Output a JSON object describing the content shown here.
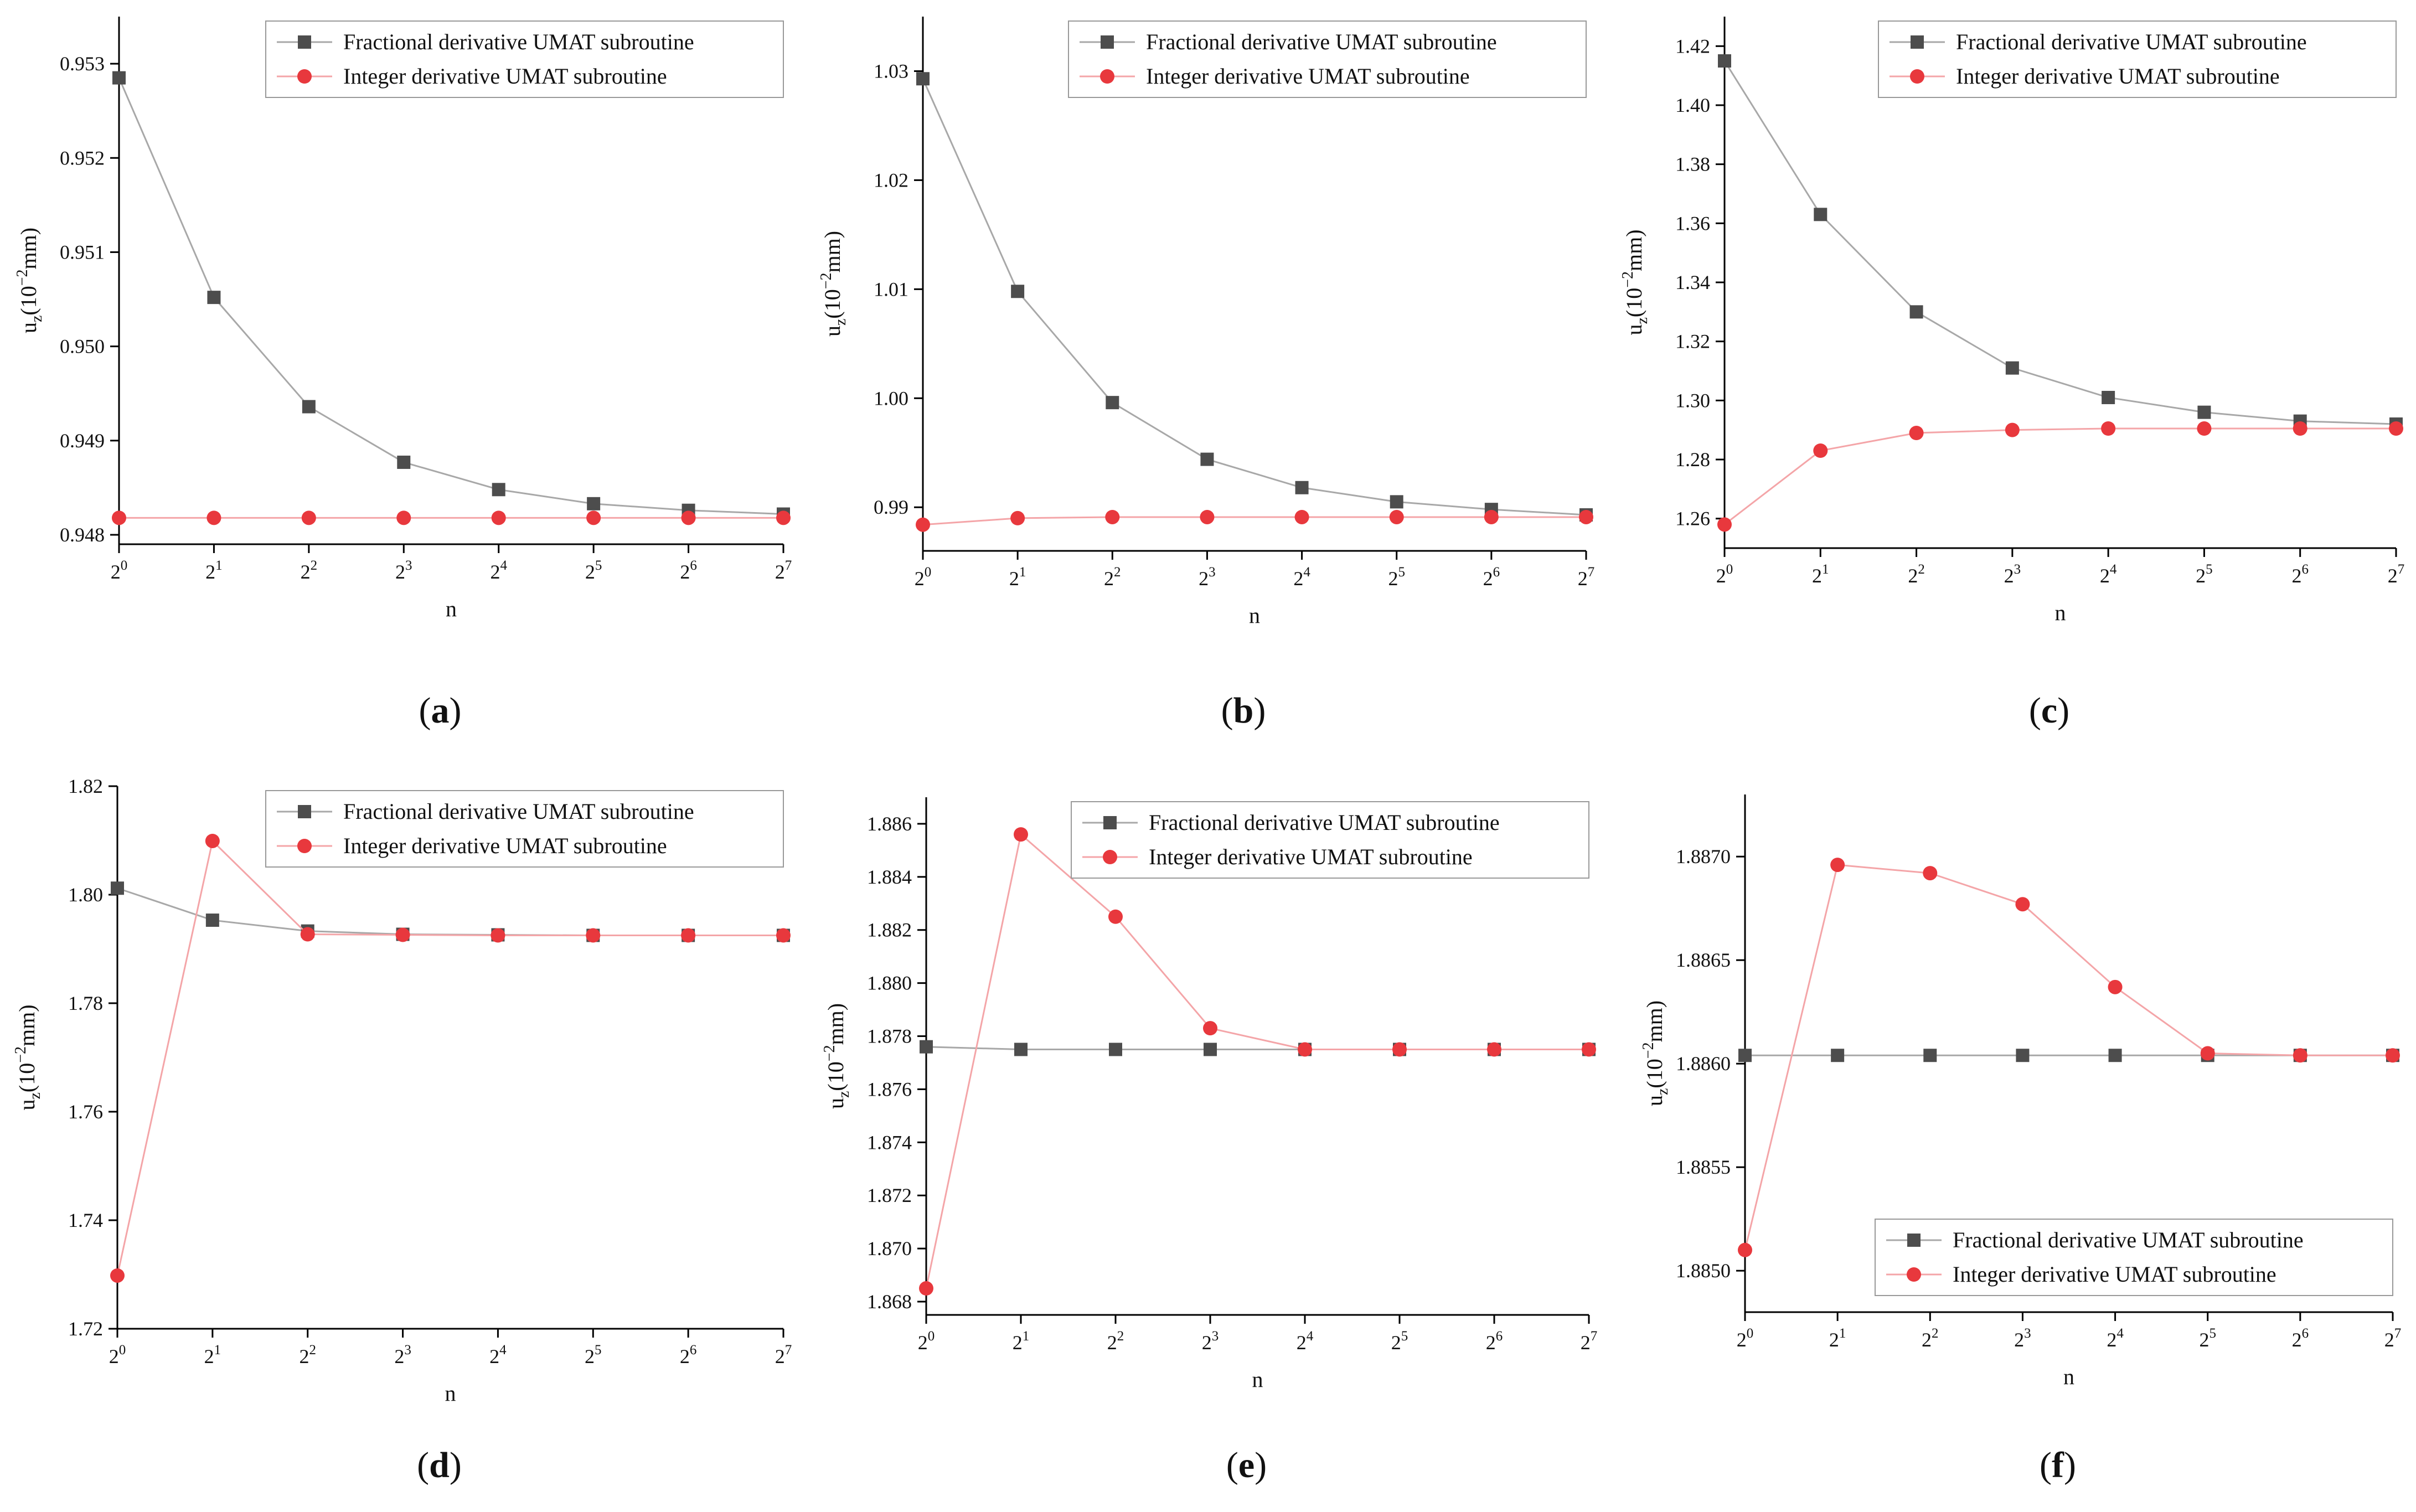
{
  "figure": {
    "xlabel": "n",
    "ylabel_main": "u",
    "ylabel_sub": "z",
    "ylabel_unit_pre": "(10",
    "ylabel_unit_exp": "−2",
    "ylabel_unit_post": "mm)",
    "x_tick_base": "2",
    "x_tick_exponents": [
      "0",
      "1",
      "2",
      "3",
      "4",
      "5",
      "6",
      "7"
    ],
    "fractional_color": "#4d4d4d",
    "integer_color": "#e8383d"
  },
  "chart_data": [
    {
      "type": "line",
      "panel": "(a)",
      "title": "",
      "xlabel": "n",
      "ylabel": "uz(10−2mm)",
      "categories": [
        "2^0",
        "2^1",
        "2^2",
        "2^3",
        "2^4",
        "2^5",
        "2^6",
        "2^7"
      ],
      "ylim": [
        0.9479,
        0.9535
      ],
      "yticks": [
        "0.948",
        "0.949",
        "0.950",
        "0.951",
        "0.952",
        "0.953"
      ],
      "legend_position": "top-right",
      "series": [
        {
          "name": "Fractional derivative UMAT subroutine",
          "values": [
            0.95285,
            0.95052,
            0.94936,
            0.94877,
            0.94848,
            0.94833,
            0.94826,
            0.94822
          ]
        },
        {
          "name": "Integer derivative UMAT subroutine",
          "values": [
            0.94818,
            0.94818,
            0.94818,
            0.94818,
            0.94818,
            0.94818,
            0.94818,
            0.94818
          ]
        }
      ]
    },
    {
      "type": "line",
      "panel": "(b)",
      "title": "",
      "xlabel": "n",
      "ylabel": "uz(10−2mm)",
      "categories": [
        "2^0",
        "2^1",
        "2^2",
        "2^3",
        "2^4",
        "2^5",
        "2^6",
        "2^7"
      ],
      "ylim": [
        0.986,
        1.035
      ],
      "yticks": [
        "0.99",
        "1.00",
        "1.01",
        "1.02",
        "1.03"
      ],
      "legend_position": "top-right",
      "series": [
        {
          "name": "Fractional derivative UMAT subroutine",
          "values": [
            1.0293,
            1.0098,
            0.9996,
            0.9944,
            0.9918,
            0.9905,
            0.9898,
            0.9893
          ]
        },
        {
          "name": "Integer derivative UMAT subroutine",
          "values": [
            0.9884,
            0.989,
            0.9891,
            0.9891,
            0.9891,
            0.9891,
            0.9891,
            0.9891
          ]
        }
      ]
    },
    {
      "type": "line",
      "panel": "(c)",
      "title": "",
      "xlabel": "n",
      "ylabel": "uz(10−2mm)",
      "categories": [
        "2^0",
        "2^1",
        "2^2",
        "2^3",
        "2^4",
        "2^5",
        "2^6",
        "2^7"
      ],
      "ylim": [
        1.25,
        1.43
      ],
      "yticks": [
        "1.26",
        "1.28",
        "1.30",
        "1.32",
        "1.34",
        "1.36",
        "1.38",
        "1.40",
        "1.42"
      ],
      "legend_position": "top-right",
      "series": [
        {
          "name": "Fractional derivative UMAT subroutine",
          "values": [
            1.415,
            1.363,
            1.33,
            1.311,
            1.301,
            1.296,
            1.293,
            1.292
          ]
        },
        {
          "name": "Integer derivative UMAT subroutine",
          "values": [
            1.258,
            1.283,
            1.289,
            1.29,
            1.2905,
            1.2905,
            1.2905,
            1.2905
          ]
        }
      ]
    },
    {
      "type": "line",
      "panel": "(d)",
      "title": "",
      "xlabel": "n",
      "ylabel": "uz(10−2mm)",
      "categories": [
        "2^0",
        "2^1",
        "2^2",
        "2^3",
        "2^4",
        "2^5",
        "2^6",
        "2^7"
      ],
      "ylim": [
        1.72,
        1.82
      ],
      "yticks": [
        "1.72",
        "1.74",
        "1.76",
        "1.78",
        "1.80",
        "1.82"
      ],
      "legend_position": "top-right",
      "series": [
        {
          "name": "Fractional derivative UMAT subroutine",
          "values": [
            1.8012,
            1.7953,
            1.7933,
            1.7927,
            1.7926,
            1.7925,
            1.7925,
            1.7925
          ]
        },
        {
          "name": "Integer derivative UMAT subroutine",
          "values": [
            1.7298,
            1.8099,
            1.7927,
            1.7926,
            1.7925,
            1.7925,
            1.7925,
            1.7925
          ]
        }
      ]
    },
    {
      "type": "line",
      "panel": "(e)",
      "title": "",
      "xlabel": "n",
      "ylabel": "uz(10−2mm)",
      "categories": [
        "2^0",
        "2^1",
        "2^2",
        "2^3",
        "2^4",
        "2^5",
        "2^6",
        "2^7"
      ],
      "ylim": [
        1.8675,
        1.887
      ],
      "yticks": [
        "1.868",
        "1.870",
        "1.872",
        "1.874",
        "1.876",
        "1.878",
        "1.880",
        "1.882",
        "1.884",
        "1.886"
      ],
      "legend_position": "top-right",
      "series": [
        {
          "name": "Fractional derivative UMAT subroutine",
          "values": [
            1.8776,
            1.8775,
            1.8775,
            1.8775,
            1.8775,
            1.8775,
            1.8775,
            1.8775
          ]
        },
        {
          "name": "Integer derivative UMAT subroutine",
          "values": [
            1.8685,
            1.8856,
            1.8825,
            1.8783,
            1.8775,
            1.8775,
            1.8775,
            1.8775
          ]
        }
      ]
    },
    {
      "type": "line",
      "panel": "(f)",
      "title": "",
      "xlabel": "n",
      "ylabel": "uz(10−2mm)",
      "categories": [
        "2^0",
        "2^1",
        "2^2",
        "2^3",
        "2^4",
        "2^5",
        "2^6",
        "2^7"
      ],
      "ylim": [
        1.8848,
        1.8873
      ],
      "yticks": [
        "1.8850",
        "1.8855",
        "1.8860",
        "1.8865",
        "1.8870"
      ],
      "legend_position": "bottom-right",
      "series": [
        {
          "name": "Fractional derivative UMAT subroutine",
          "values": [
            1.88604,
            1.88604,
            1.88604,
            1.88604,
            1.88604,
            1.88604,
            1.88604,
            1.88604
          ]
        },
        {
          "name": "Integer derivative UMAT subroutine",
          "values": [
            1.8851,
            1.88696,
            1.88692,
            1.88677,
            1.88637,
            1.88605,
            1.88604,
            1.88604
          ]
        }
      ]
    }
  ]
}
